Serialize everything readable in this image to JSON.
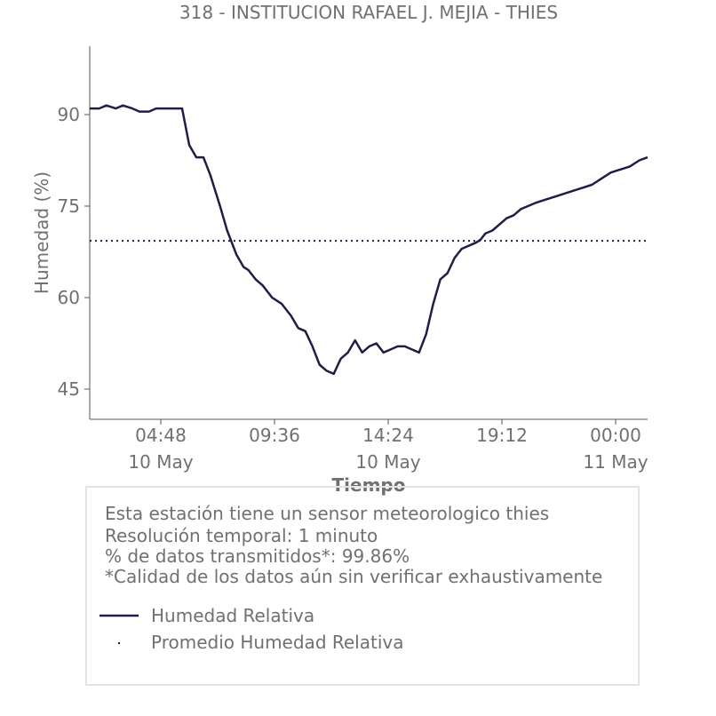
{
  "chart_data": {
    "type": "line",
    "title": "318 - INSTITUCION RAFAEL J. MEJIA - THIES",
    "xlabel": "Tiempo",
    "ylabel": "Humedad (%)",
    "yticks": [
      45,
      60,
      75,
      90
    ],
    "ylim": [
      40,
      101
    ],
    "x_range_hours": [
      1.8,
      25.35
    ],
    "xticks": [
      {
        "hour": 4.8,
        "time": "04:48",
        "date": "10 May"
      },
      {
        "hour": 9.6,
        "time": "09:36",
        "date": ""
      },
      {
        "hour": 14.4,
        "time": "14:24",
        "date": "10 May"
      },
      {
        "hour": 19.2,
        "time": "19:12",
        "date": ""
      },
      {
        "hour": 24.0,
        "time": "00:00",
        "date": "11 May"
      }
    ],
    "series": [
      {
        "name": "Humedad Relativa",
        "color": "#1f1f45",
        "style": "solid",
        "x_hours": [
          1.8,
          2.2,
          2.5,
          2.9,
          3.2,
          3.6,
          3.9,
          4.3,
          4.6,
          5.0,
          5.3,
          5.7,
          6.0,
          6.3,
          6.6,
          6.9,
          7.1,
          7.3,
          7.6,
          8.0,
          8.3,
          8.5,
          8.8,
          9.1,
          9.5,
          9.9,
          10.3,
          10.6,
          10.9,
          11.2,
          11.5,
          11.8,
          12.1,
          12.4,
          12.7,
          13.0,
          13.3,
          13.6,
          13.9,
          14.2,
          14.5,
          14.8,
          15.1,
          15.4,
          15.7,
          16.0,
          16.3,
          16.6,
          16.9,
          17.2,
          17.5,
          17.8,
          18.1,
          18.3,
          18.5,
          18.8,
          19.1,
          19.4,
          19.7,
          20.0,
          20.3,
          20.6,
          21.0,
          21.4,
          21.8,
          22.2,
          22.6,
          23.0,
          23.4,
          23.8,
          24.2,
          24.6,
          25.0,
          25.35
        ],
        "values": [
          91,
          91,
          91.5,
          91,
          91.5,
          91,
          90.5,
          90.5,
          91,
          91,
          91,
          91,
          85,
          83,
          83,
          80,
          77.5,
          75,
          71,
          67,
          65,
          64.5,
          63,
          62,
          60,
          59,
          57,
          55,
          54.5,
          52,
          49,
          48,
          47.5,
          50,
          51,
          53,
          51,
          52,
          52.5,
          51,
          51.5,
          52,
          52,
          51.5,
          51,
          54,
          59,
          63,
          64,
          66.5,
          68,
          68.5,
          69,
          69.5,
          70.5,
          71,
          72,
          73,
          73.5,
          74.5,
          75,
          75.5,
          76,
          76.5,
          77,
          77.5,
          78,
          78.5,
          79.5,
          80.5,
          81,
          81.5,
          82.5,
          83
        ]
      },
      {
        "name": "Promedio Humedad Relativa",
        "color": "#1f1f45",
        "style": "dotted",
        "value": 69.3
      }
    ]
  },
  "info": {
    "line1": "Esta estación tiene un sensor meteorologico thies",
    "line2": "Resolución temporal: 1 minuto",
    "line3": "% de datos transmitidos*: 99.86%",
    "line4": "*Calidad de los datos aún sin verificar exhaustivamente"
  },
  "legend": {
    "item1": "Humedad Relativa",
    "item2": "Promedio Humedad Relativa"
  },
  "colors": {
    "series": "#1f1f45",
    "text": "#707070",
    "axis": "#555555",
    "box_border": "#e3e3e3"
  }
}
